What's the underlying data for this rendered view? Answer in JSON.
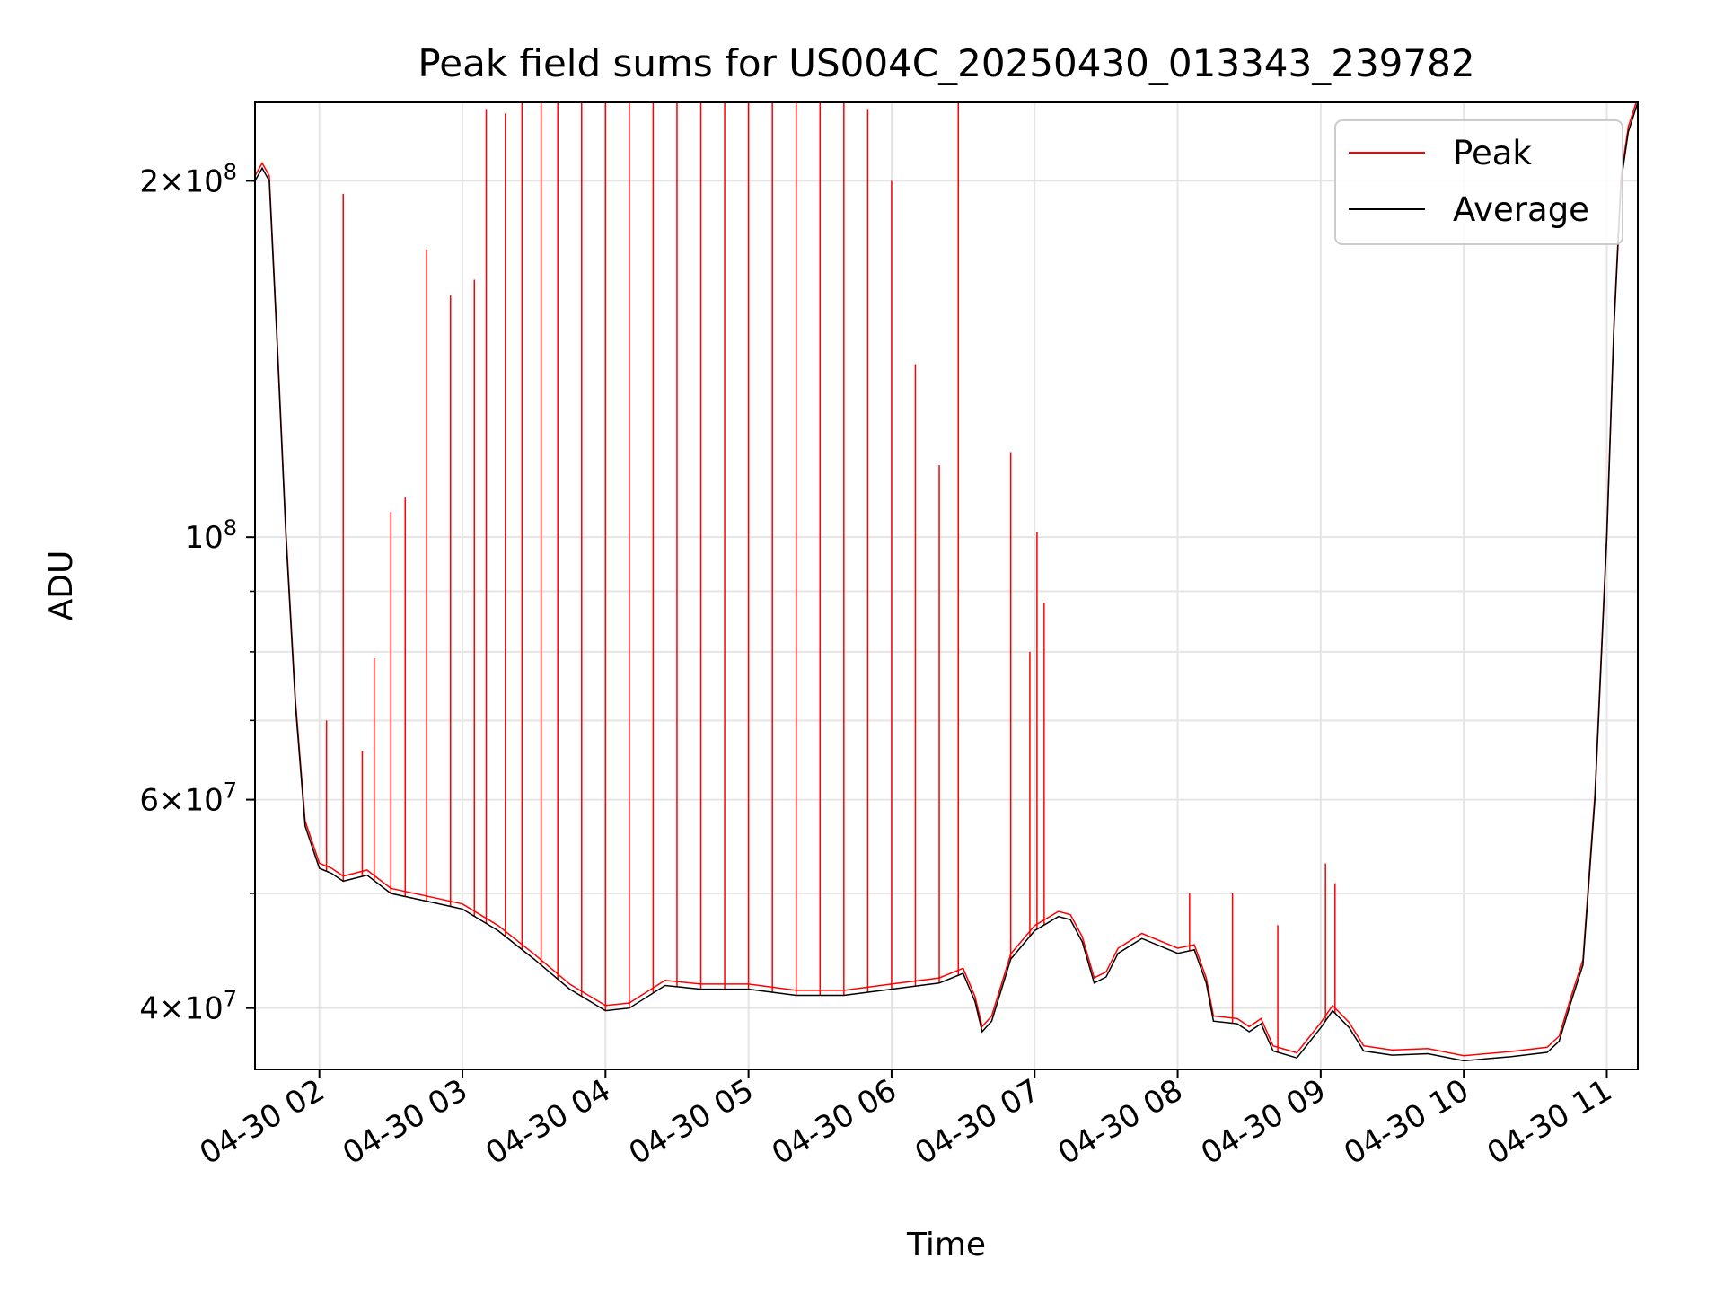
{
  "chart_data": {
    "type": "line",
    "title": "Peak field sums for US004C_20250430_013343_239782",
    "xlabel": "Time",
    "ylabel": "ADU",
    "y_scale": "log",
    "xlim": [
      "2025-04-30 01:33",
      "2025-04-30 11:13"
    ],
    "ylim": [
      35500000,
      233000000
    ],
    "grid": true,
    "legend_position": "top-right",
    "x_ticks": [
      {
        "t": "2025-04-30 02:00",
        "label": "04-30 02"
      },
      {
        "t": "2025-04-30 03:00",
        "label": "04-30 03"
      },
      {
        "t": "2025-04-30 04:00",
        "label": "04-30 04"
      },
      {
        "t": "2025-04-30 05:00",
        "label": "04-30 05"
      },
      {
        "t": "2025-04-30 06:00",
        "label": "04-30 06"
      },
      {
        "t": "2025-04-30 07:00",
        "label": "04-30 07"
      },
      {
        "t": "2025-04-30 08:00",
        "label": "04-30 08"
      },
      {
        "t": "2025-04-30 09:00",
        "label": "04-30 09"
      },
      {
        "t": "2025-04-30 10:00",
        "label": "04-30 10"
      },
      {
        "t": "2025-04-30 11:00",
        "label": "04-30 11"
      }
    ],
    "y_ticks": [
      {
        "v": 40000000,
        "mant": "4",
        "exp": "7"
      },
      {
        "v": 60000000,
        "mant": "6",
        "exp": "7"
      },
      {
        "v": 100000000,
        "mant": "",
        "exp": "8"
      },
      {
        "v": 200000000,
        "mant": "2",
        "exp": "8"
      }
    ],
    "y_minor_grid": [
      50000000,
      70000000,
      80000000,
      90000000
    ],
    "series": [
      {
        "name": "Average",
        "color": "#000000",
        "points": [
          [
            "2025-04-30 01:33",
            200000000
          ],
          [
            "2025-04-30 01:36",
            205000000
          ],
          [
            "2025-04-30 01:39",
            200000000
          ],
          [
            "2025-04-30 01:42",
            150000000
          ],
          [
            "2025-04-30 01:46",
            100000000
          ],
          [
            "2025-04-30 01:50",
            72000000
          ],
          [
            "2025-04-30 01:54",
            57000000
          ],
          [
            "2025-04-30 02:00",
            52500000
          ],
          [
            "2025-04-30 02:05",
            52000000
          ],
          [
            "2025-04-30 02:10",
            51200000
          ],
          [
            "2025-04-30 02:20",
            51800000
          ],
          [
            "2025-04-30 02:30",
            50000000
          ],
          [
            "2025-04-30 02:50",
            49000000
          ],
          [
            "2025-04-30 03:00",
            48500000
          ],
          [
            "2025-04-30 03:15",
            46500000
          ],
          [
            "2025-04-30 03:30",
            44000000
          ],
          [
            "2025-04-30 03:45",
            41500000
          ],
          [
            "2025-04-30 04:00",
            39800000
          ],
          [
            "2025-04-30 04:10",
            40000000
          ],
          [
            "2025-04-30 04:25",
            41800000
          ],
          [
            "2025-04-30 04:40",
            41500000
          ],
          [
            "2025-04-30 05:00",
            41500000
          ],
          [
            "2025-04-30 05:20",
            41000000
          ],
          [
            "2025-04-30 05:40",
            41000000
          ],
          [
            "2025-04-30 06:00",
            41500000
          ],
          [
            "2025-04-30 06:20",
            42000000
          ],
          [
            "2025-04-30 06:30",
            42800000
          ],
          [
            "2025-04-30 06:35",
            40500000
          ],
          [
            "2025-04-30 06:38",
            38200000
          ],
          [
            "2025-04-30 06:42",
            39000000
          ],
          [
            "2025-04-30 06:50",
            44000000
          ],
          [
            "2025-04-30 07:00",
            46500000
          ],
          [
            "2025-04-30 07:10",
            47800000
          ],
          [
            "2025-04-30 07:15",
            47500000
          ],
          [
            "2025-04-30 07:20",
            45500000
          ],
          [
            "2025-04-30 07:25",
            42000000
          ],
          [
            "2025-04-30 07:30",
            42500000
          ],
          [
            "2025-04-30 07:35",
            44500000
          ],
          [
            "2025-04-30 07:45",
            45800000
          ],
          [
            "2025-04-30 08:00",
            44500000
          ],
          [
            "2025-04-30 08:07",
            44800000
          ],
          [
            "2025-04-30 08:12",
            42000000
          ],
          [
            "2025-04-30 08:15",
            39000000
          ],
          [
            "2025-04-30 08:25",
            38800000
          ],
          [
            "2025-04-30 08:30",
            38200000
          ],
          [
            "2025-04-30 08:35",
            38800000
          ],
          [
            "2025-04-30 08:40",
            36800000
          ],
          [
            "2025-04-30 08:50",
            36300000
          ],
          [
            "2025-04-30 09:00",
            38500000
          ],
          [
            "2025-04-30 09:05",
            39800000
          ],
          [
            "2025-04-30 09:12",
            38500000
          ],
          [
            "2025-04-30 09:18",
            36800000
          ],
          [
            "2025-04-30 09:30",
            36500000
          ],
          [
            "2025-04-30 09:45",
            36600000
          ],
          [
            "2025-04-30 10:00",
            36100000
          ],
          [
            "2025-04-30 10:20",
            36400000
          ],
          [
            "2025-04-30 10:35",
            36700000
          ],
          [
            "2025-04-30 10:40",
            37500000
          ],
          [
            "2025-04-30 10:45",
            40500000
          ],
          [
            "2025-04-30 10:50",
            43500000
          ],
          [
            "2025-04-30 10:55",
            60000000
          ],
          [
            "2025-04-30 11:00",
            100000000
          ],
          [
            "2025-04-30 11:03",
            150000000
          ],
          [
            "2025-04-30 11:06",
            200000000
          ],
          [
            "2025-04-30 11:09",
            220000000
          ],
          [
            "2025-04-30 11:13",
            233000000
          ]
        ]
      },
      {
        "name": "Peak",
        "color": "#ff0000",
        "baseline": "Average",
        "spikes": [
          [
            "2025-04-30 02:10",
            195000000
          ],
          [
            "2025-04-30 02:03",
            70000000
          ],
          [
            "2025-04-30 02:18",
            66000000
          ],
          [
            "2025-04-30 02:23",
            79000000
          ],
          [
            "2025-04-30 02:30",
            105000000
          ],
          [
            "2025-04-30 02:36",
            108000000
          ],
          [
            "2025-04-30 02:45",
            175000000
          ],
          [
            "2025-04-30 02:55",
            160000000
          ],
          [
            "2025-04-30 03:05",
            165000000
          ],
          [
            "2025-04-30 03:10",
            230000000
          ],
          [
            "2025-04-30 03:18",
            228000000
          ],
          [
            "2025-04-30 03:25",
            233000000
          ],
          [
            "2025-04-30 03:33",
            233000000
          ],
          [
            "2025-04-30 03:40",
            233000000
          ],
          [
            "2025-04-30 03:50",
            233000000
          ],
          [
            "2025-04-30 04:00",
            233000000
          ],
          [
            "2025-04-30 04:10",
            233000000
          ],
          [
            "2025-04-30 04:20",
            233000000
          ],
          [
            "2025-04-30 04:30",
            233000000
          ],
          [
            "2025-04-30 04:40",
            233000000
          ],
          [
            "2025-04-30 04:50",
            233000000
          ],
          [
            "2025-04-30 05:00",
            233000000
          ],
          [
            "2025-04-30 05:10",
            233000000
          ],
          [
            "2025-04-30 05:20",
            233000000
          ],
          [
            "2025-04-30 05:30",
            233000000
          ],
          [
            "2025-04-30 05:40",
            233000000
          ],
          [
            "2025-04-30 05:50",
            230000000
          ],
          [
            "2025-04-30 06:00",
            200000000
          ],
          [
            "2025-04-30 06:10",
            140000000
          ],
          [
            "2025-04-30 06:20",
            115000000
          ],
          [
            "2025-04-30 06:28",
            233000000
          ],
          [
            "2025-04-30 06:50",
            118000000
          ],
          [
            "2025-04-30 06:58",
            80000000
          ],
          [
            "2025-04-30 07:01",
            101000000
          ],
          [
            "2025-04-30 07:04",
            88000000
          ],
          [
            "2025-04-30 08:05",
            50000000
          ],
          [
            "2025-04-30 08:23",
            50000000
          ],
          [
            "2025-04-30 08:42",
            47000000
          ],
          [
            "2025-04-30 09:02",
            53000000
          ],
          [
            "2025-04-30 09:06",
            51000000
          ]
        ]
      }
    ]
  }
}
